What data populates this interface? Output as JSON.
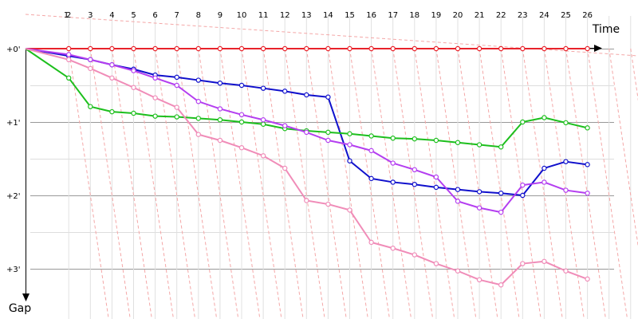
{
  "chart_data": {
    "type": "line",
    "xlabel": "Time",
    "ylabel": "Gap",
    "x_ticks": [
      "1",
      "2",
      "3",
      "4",
      "5",
      "6",
      "7",
      "8",
      "9",
      "10",
      "11",
      "12",
      "13",
      "14",
      "15",
      "16",
      "17",
      "18",
      "19",
      "20",
      "21",
      "22",
      "23",
      "24",
      "25",
      "26"
    ],
    "y_ticks": [
      "+0'",
      "+1'",
      "+2'",
      "+3'"
    ],
    "ylim": [
      0,
      3.65
    ],
    "y_reversed": true,
    "grid": true,
    "guide_lines": "dashed-pink-diagonals",
    "colors": {
      "red": "#e8232b",
      "blue": "#1010cc",
      "green": "#1dbf1d",
      "purple": "#b43ef0",
      "pink": "#f08cb8",
      "grid": "#bbbbbb",
      "guide": "#f4a7a7"
    },
    "series": [
      {
        "color": "red",
        "x": [
          0,
          2,
          3,
          4,
          5,
          6,
          7,
          8,
          9,
          10,
          11,
          12,
          13,
          14,
          15,
          16,
          17,
          18,
          19,
          20,
          21,
          22,
          23,
          24,
          25,
          26
        ],
        "y": [
          0,
          0,
          0,
          0,
          0,
          0,
          0,
          0,
          0,
          0,
          0,
          0,
          0,
          0,
          0,
          0,
          0,
          0,
          0,
          0,
          0,
          0,
          0,
          0,
          0,
          0
        ]
      },
      {
        "color": "blue",
        "x": [
          0,
          2,
          3,
          4,
          5,
          6,
          7,
          8,
          9,
          10,
          11,
          12,
          13,
          14,
          15,
          16,
          17,
          18,
          19,
          20,
          21,
          22,
          23,
          24,
          25,
          26
        ],
        "y": [
          0,
          0.1,
          0.15,
          0.22,
          0.28,
          0.36,
          0.39,
          0.43,
          0.47,
          0.5,
          0.54,
          0.58,
          0.63,
          0.66,
          1.53,
          1.77,
          1.82,
          1.85,
          1.89,
          1.92,
          1.95,
          1.97,
          2.0,
          1.63,
          1.54,
          1.58
        ]
      },
      {
        "color": "green",
        "x": [
          0,
          2,
          3,
          4,
          5,
          6,
          7,
          8,
          9,
          10,
          11,
          12,
          13,
          14,
          15,
          16,
          17,
          18,
          19,
          20,
          21,
          22,
          23,
          24,
          25,
          26
        ],
        "y": [
          0,
          0.4,
          0.79,
          0.86,
          0.88,
          0.92,
          0.93,
          0.95,
          0.97,
          1.0,
          1.03,
          1.09,
          1.12,
          1.14,
          1.16,
          1.19,
          1.22,
          1.23,
          1.25,
          1.28,
          1.31,
          1.34,
          1.0,
          0.94,
          1.01,
          1.08
        ]
      },
      {
        "color": "purple",
        "x": [
          0,
          2,
          3,
          4,
          5,
          6,
          7,
          8,
          9,
          10,
          11,
          12,
          13,
          14,
          15,
          16,
          17,
          18,
          19,
          20,
          21,
          22,
          23,
          24,
          25,
          26
        ],
        "y": [
          0,
          0.08,
          0.15,
          0.22,
          0.3,
          0.4,
          0.5,
          0.72,
          0.82,
          0.9,
          0.97,
          1.05,
          1.14,
          1.25,
          1.31,
          1.39,
          1.56,
          1.65,
          1.75,
          2.08,
          2.17,
          2.23,
          1.86,
          1.82,
          1.93,
          1.97
        ]
      },
      {
        "color": "pink",
        "x": [
          0,
          2,
          3,
          4,
          5,
          6,
          7,
          8,
          9,
          10,
          11,
          12,
          13,
          14,
          15,
          16,
          17,
          18,
          19,
          20,
          21,
          22,
          23,
          24,
          25,
          26
        ],
        "y": [
          0,
          0.15,
          0.27,
          0.4,
          0.53,
          0.67,
          0.8,
          1.17,
          1.25,
          1.35,
          1.46,
          1.63,
          2.07,
          2.12,
          2.2,
          2.64,
          2.72,
          2.81,
          2.93,
          3.03,
          3.15,
          3.22,
          2.93,
          2.9,
          3.03,
          3.14
        ]
      }
    ]
  }
}
